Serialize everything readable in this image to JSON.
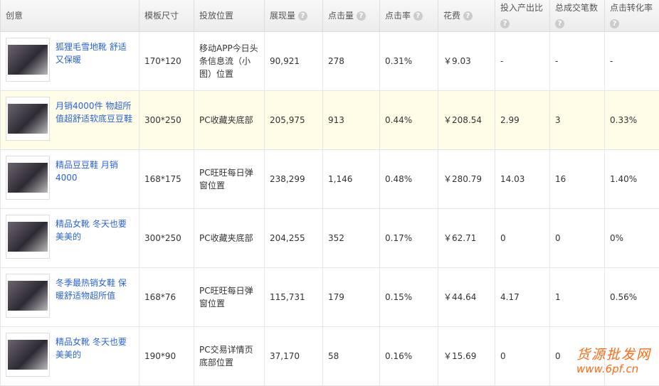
{
  "headers": [
    "创意",
    "模板尺寸",
    "投放位置",
    "展现量",
    "点击量",
    "点击率",
    "花费",
    "投入产出比",
    "总成交笔数",
    "点击转化率"
  ],
  "help_icon": "?",
  "rows": [
    {
      "title": "狐狸毛雪地靴 舒适又保暖",
      "size": "170*120",
      "placement": "移动APP今日头条信息流（小图）位置",
      "impressions": "90,921",
      "clicks": "278",
      "ctr": "0.31%",
      "cost": "￥9.03",
      "roi": "-",
      "orders": "-",
      "cvr": "-"
    },
    {
      "title": "月销4000件 物超所值超舒适软底豆豆鞋",
      "size": "300*250",
      "placement": "PC收藏夹底部",
      "impressions": "205,975",
      "clicks": "913",
      "ctr": "0.44%",
      "cost": "￥208.54",
      "roi": "2.99",
      "orders": "3",
      "cvr": "0.33%"
    },
    {
      "title": "精品豆豆鞋 月销4000",
      "size": "168*175",
      "placement": "PC旺旺每日弹窗位置",
      "impressions": "238,299",
      "clicks": "1,146",
      "ctr": "0.48%",
      "cost": "￥280.79",
      "roi": "14.03",
      "orders": "16",
      "cvr": "1.40%"
    },
    {
      "title": "精品女靴 冬天也要美美的",
      "size": "300*250",
      "placement": "PC收藏夹底部",
      "impressions": "204,255",
      "clicks": "352",
      "ctr": "0.17%",
      "cost": "￥62.71",
      "roi": "0",
      "orders": "0",
      "cvr": "0%"
    },
    {
      "title": "冬季最热销女鞋 保暖舒适物超所值",
      "size": "168*76",
      "placement": "PC旺旺每日弹窗位置",
      "impressions": "115,731",
      "clicks": "179",
      "ctr": "0.15%",
      "cost": "￥44.64",
      "roi": "4.17",
      "orders": "1",
      "cvr": "0.56%"
    },
    {
      "title": "精品女靴 冬天也要美美的",
      "size": "190*90",
      "placement": "PC交易详情页底部位置",
      "impressions": "37,170",
      "clicks": "58",
      "ctr": "0.16%",
      "cost": "￥15.69",
      "roi": "0",
      "orders": "0",
      "cvr": ""
    }
  ],
  "watermark": {
    "line1": "货源批发网",
    "line2": "www.6pf.cn"
  },
  "highlight_color": "#fffde8"
}
